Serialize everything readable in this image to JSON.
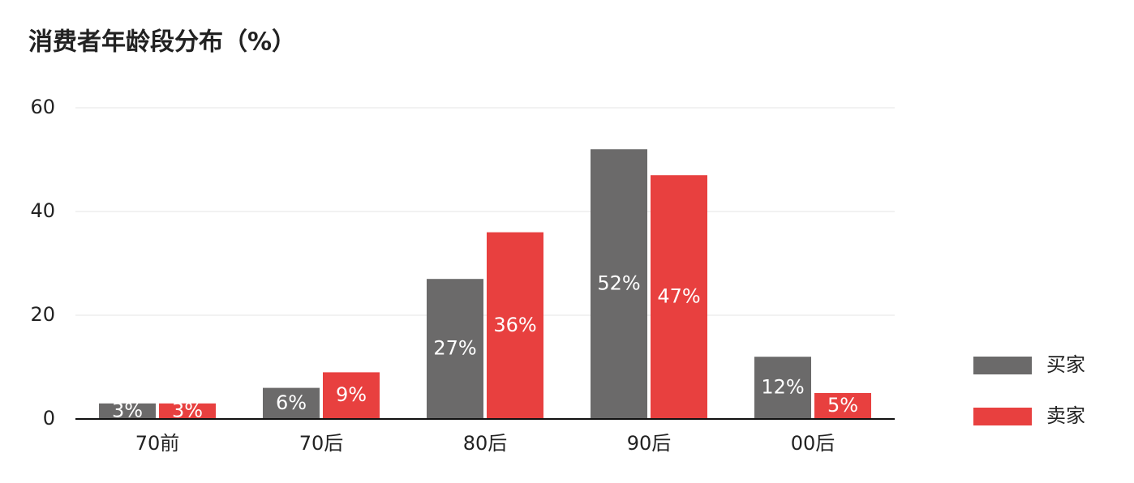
{
  "chart_data": {
    "type": "bar",
    "title": "消费者年龄段分布（%）",
    "categories": [
      "70前",
      "70后",
      "80后",
      "90后",
      "00后"
    ],
    "series": [
      {
        "name": "买家",
        "color": "#6b6a6a",
        "values": [
          3,
          6,
          27,
          52,
          12
        ],
        "value_labels": [
          "3%",
          "6%",
          "27%",
          "52%",
          "12%"
        ]
      },
      {
        "name": "卖家",
        "color": "#e8403f",
        "values": [
          3,
          9,
          36,
          47,
          5
        ],
        "value_labels": [
          "3%",
          "9%",
          "36%",
          "47%",
          "5%"
        ]
      }
    ],
    "ylim": [
      0,
      60
    ],
    "yticks": [
      0,
      20,
      40,
      60
    ],
    "grid": true,
    "legend": "right"
  }
}
